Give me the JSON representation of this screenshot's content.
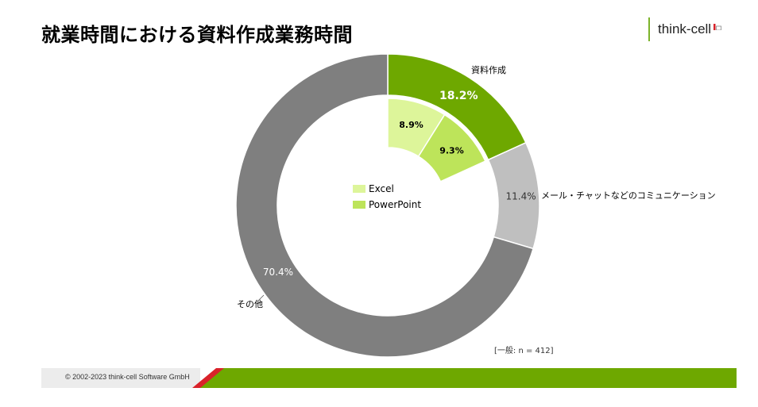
{
  "title": "就業時間における資料作成業務時間",
  "logo": {
    "text": "think-cell",
    "icon": "think-cell-logo-icon"
  },
  "note": "[一般: n = 412]",
  "footer": {
    "copyright": "© 2002-2023 think-cell Software GmbH"
  },
  "colors": {
    "shiryo": "#6ea800",
    "comm": "#bfbfbf",
    "other": "#7f7f7f",
    "excel": "#ddf59a",
    "powerpoint": "#bde45a",
    "accent_red": "#d9222a"
  },
  "chart_data": {
    "type": "pie",
    "outer_ring": [
      {
        "name": "資料作成",
        "value": 18.2,
        "label": "18.2%"
      },
      {
        "name": "メール・チャットなどのコミュニケーション",
        "value": 11.4,
        "label": "11.4%"
      },
      {
        "name": "その他",
        "value": 70.4,
        "label": "70.4%"
      }
    ],
    "inner_breakdown": [
      {
        "name": "Excel",
        "value": 8.9,
        "label": "8.9%"
      },
      {
        "name": "PowerPoint",
        "value": 9.3,
        "label": "9.3%"
      }
    ],
    "legend": [
      "Excel",
      "PowerPoint"
    ],
    "legend_position": "center"
  }
}
